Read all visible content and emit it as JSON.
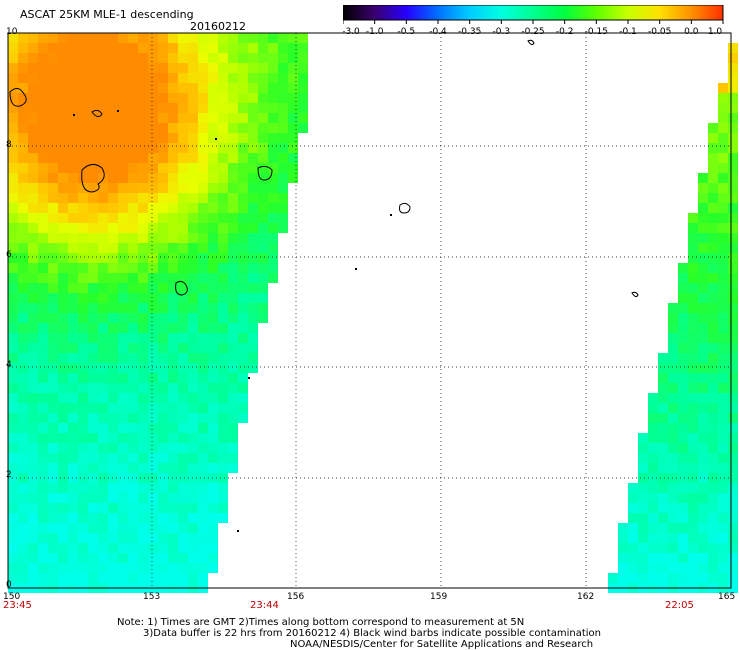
{
  "header": {
    "title": "ASCAT 25KM MLE-1 descending",
    "date": "20160212"
  },
  "colorbar": {
    "ticks": [
      "-3.0",
      "-1.0",
      "-0.5",
      "-0.4",
      "-0.35",
      "-0.3",
      "-0.25",
      "-0.2",
      "-0.15",
      "-0.1",
      "-0.05",
      "0.0",
      "1.0"
    ],
    "colors": [
      "#000000",
      "#3a006e",
      "#2600ff",
      "#0070ff",
      "#00ccff",
      "#00ffe0",
      "#00ff90",
      "#00ff40",
      "#60ff00",
      "#c8ff00",
      "#ffe000",
      "#ff9000",
      "#ff3000"
    ]
  },
  "map": {
    "lat_labels": [
      "0",
      "2",
      "4",
      "6",
      "8",
      "10"
    ],
    "lon_labels": [
      "150",
      "153",
      "156",
      "159",
      "162",
      "165"
    ],
    "swath_times": [
      "23:45",
      "23:44",
      "22:05"
    ]
  },
  "notes": {
    "line1": "Note: 1) Times are GMT 2)Times along bottom correspond to measurement at 5N",
    "line2": "3)Data buffer is 22 hrs from 20160212 4) Black wind barbs indicate possible contamination",
    "line3": "NOAA/NESDIS/Center for Satellite Applications and Research"
  }
}
